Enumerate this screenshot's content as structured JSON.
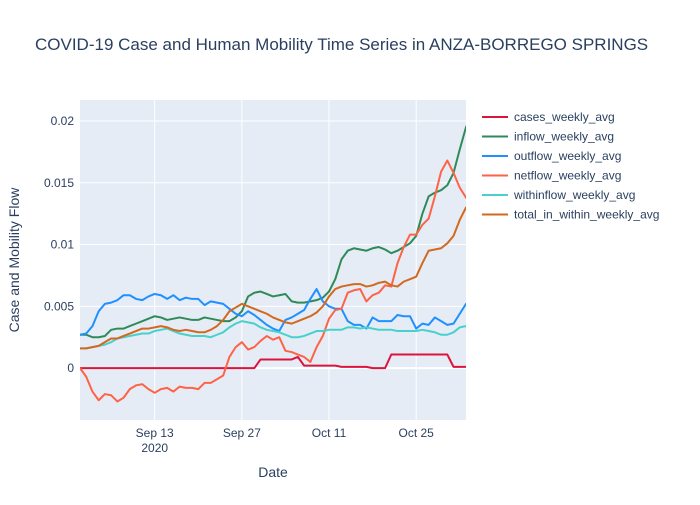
{
  "chart_data": {
    "type": "line",
    "title": "COVID-19 Case and Human Mobility Time Series in ANZA-BORREGO SPRINGS",
    "xlabel": "Date",
    "ylabel": "Case and Mobility Flow",
    "x_start": "2020-09-01",
    "x_range": [
      "2020-09-01",
      "2020-11-02"
    ],
    "ylim": [
      -0.0042,
      0.0217
    ],
    "x_ticks": [
      {
        "date": "2020-09-13",
        "label": "Sep 13",
        "sublabel": "2020"
      },
      {
        "date": "2020-09-27",
        "label": "Sep 27",
        "sublabel": ""
      },
      {
        "date": "2020-10-11",
        "label": "Oct 11",
        "sublabel": ""
      },
      {
        "date": "2020-10-25",
        "label": "Oct 25",
        "sublabel": ""
      }
    ],
    "y_ticks": [
      {
        "value": 0,
        "label": "0"
      },
      {
        "value": 0.005,
        "label": "0.005"
      },
      {
        "value": 0.01,
        "label": "0.01"
      },
      {
        "value": 0.015,
        "label": "0.015"
      },
      {
        "value": 0.02,
        "label": "0.02"
      }
    ],
    "grid": true,
    "legend_position": "right",
    "series": [
      {
        "name": "cases_weekly_avg",
        "color": "#dc143c",
        "values": [
          0,
          0,
          0,
          0,
          0,
          0,
          0,
          0,
          0,
          0,
          0,
          0,
          0,
          0,
          0,
          0,
          0,
          0,
          0,
          0,
          0,
          0,
          0,
          0,
          0,
          0,
          0,
          0,
          0,
          0.0007,
          0.0007,
          0.0007,
          0.0007,
          0.0007,
          0.0007,
          0.0009,
          0.0002,
          0.0002,
          0.0002,
          0.0002,
          0.0002,
          0.0002,
          0.0001,
          0.0001,
          0.0001,
          0.0001,
          0.0001,
          0,
          0,
          0,
          0.0011,
          0.0011,
          0.0011,
          0.0011,
          0.0011,
          0.0011,
          0.0011,
          0.0011,
          0.0011,
          0.0011,
          0.0001,
          0.0001,
          0.0001,
          0.0003,
          0.0003,
          0.0003,
          0.0003,
          0.0003,
          0.0003,
          0.0003,
          0.0003,
          0.0003,
          0.0003
        ]
      },
      {
        "name": "inflow_weekly_avg",
        "color": "#2e8b57",
        "values": [
          0.0027,
          0.0027,
          0.0025,
          0.0025,
          0.0026,
          0.0031,
          0.0032,
          0.0032,
          0.0034,
          0.0036,
          0.0038,
          0.004,
          0.0042,
          0.0041,
          0.0039,
          0.004,
          0.0041,
          0.004,
          0.0039,
          0.0039,
          0.0041,
          0.004,
          0.0039,
          0.0038,
          0.0038,
          0.0041,
          0.0046,
          0.0058,
          0.0061,
          0.0062,
          0.006,
          0.0058,
          0.0059,
          0.006,
          0.0054,
          0.0053,
          0.0053,
          0.0054,
          0.0055,
          0.0057,
          0.0062,
          0.0072,
          0.0088,
          0.0095,
          0.0097,
          0.0096,
          0.0095,
          0.0097,
          0.0098,
          0.0096,
          0.0093,
          0.0095,
          0.0098,
          0.0101,
          0.0107,
          0.0125,
          0.0139,
          0.0142,
          0.0144,
          0.0148,
          0.0158,
          0.0177,
          0.0195,
          0.0204,
          0.0203,
          0.02,
          0.0194,
          0.0185,
          0.0185,
          0.0185,
          0.0185,
          0.0185,
          0.0185
        ]
      },
      {
        "name": "outflow_weekly_avg",
        "color": "#1e90ff",
        "values": [
          0.0027,
          0.0028,
          0.0034,
          0.0046,
          0.0052,
          0.0053,
          0.0055,
          0.0059,
          0.0059,
          0.0056,
          0.0055,
          0.0058,
          0.006,
          0.0059,
          0.0056,
          0.0059,
          0.0055,
          0.0057,
          0.0056,
          0.0056,
          0.0051,
          0.0054,
          0.0053,
          0.0052,
          0.0048,
          0.0044,
          0.0042,
          0.0046,
          0.0043,
          0.0039,
          0.0035,
          0.0032,
          0.003,
          0.0039,
          0.0041,
          0.0044,
          0.0047,
          0.0056,
          0.0064,
          0.0054,
          0.005,
          0.0048,
          0.0048,
          0.0038,
          0.0035,
          0.0035,
          0.0032,
          0.0041,
          0.0038,
          0.0038,
          0.0038,
          0.0043,
          0.0042,
          0.0042,
          0.0032,
          0.0036,
          0.0035,
          0.0041,
          0.0038,
          0.0035,
          0.0036,
          0.0044,
          0.0052,
          0.0055,
          0.0051,
          0.0051,
          0.0051,
          0.0051,
          0.0051,
          0.0051,
          0.0051,
          0.0051,
          0.0051
        ]
      },
      {
        "name": "netflow_weekly_avg",
        "color": "#ff6347",
        "values": [
          0,
          -0.0007,
          -0.0019,
          -0.0026,
          -0.0021,
          -0.0022,
          -0.0027,
          -0.0024,
          -0.0017,
          -0.0014,
          -0.0013,
          -0.0017,
          -0.002,
          -0.0017,
          -0.0016,
          -0.0019,
          -0.0015,
          -0.0016,
          -0.0016,
          -0.0017,
          -0.0012,
          -0.0012,
          -0.0009,
          -0.0006,
          0.0009,
          0.0017,
          0.0021,
          0.0015,
          0.0017,
          0.0022,
          0.0026,
          0.0023,
          0.0025,
          0.0014,
          0.0013,
          0.0011,
          0.0009,
          0.0005,
          0.0017,
          0.0026,
          0.004,
          0.0047,
          0.0048,
          0.0061,
          0.0063,
          0.0064,
          0.0054,
          0.0059,
          0.0061,
          0.0067,
          0.0066,
          0.0085,
          0.0098,
          0.0108,
          0.0108,
          0.0116,
          0.0121,
          0.0139,
          0.0159,
          0.0168,
          0.0158,
          0.0146,
          0.0138,
          0.0133,
          0.0133,
          0.0133,
          0.0133,
          0.0133,
          0.0133,
          0.0133,
          0.0133,
          0.0133,
          0.0133
        ]
      },
      {
        "name": "withinflow_weekly_avg",
        "color": "#48d1cc",
        "values": [
          0.0016,
          0.0016,
          0.0017,
          0.0018,
          0.0019,
          0.0021,
          0.0024,
          0.0025,
          0.0026,
          0.0027,
          0.0028,
          0.0028,
          0.003,
          0.0031,
          0.0032,
          0.003,
          0.0028,
          0.0027,
          0.0026,
          0.0026,
          0.0026,
          0.0025,
          0.0027,
          0.0029,
          0.0033,
          0.0036,
          0.0038,
          0.0037,
          0.0036,
          0.0033,
          0.0031,
          0.003,
          0.0029,
          0.0027,
          0.0025,
          0.0025,
          0.0026,
          0.0028,
          0.003,
          0.003,
          0.0031,
          0.0031,
          0.0031,
          0.0033,
          0.0033,
          0.0032,
          0.0033,
          0.0032,
          0.0031,
          0.0031,
          0.0031,
          0.003,
          0.003,
          0.003,
          0.003,
          0.0031,
          0.003,
          0.0029,
          0.0027,
          0.0027,
          0.0029,
          0.0033,
          0.0034,
          0.0031,
          0.0031,
          0.0031,
          0.0031,
          0.0031,
          0.0031,
          0.0031,
          0.0031,
          0.0031,
          0.0031
        ]
      },
      {
        "name": "total_in_within_weekly_avg",
        "color": "#d2691e",
        "values": [
          0.0016,
          0.0016,
          0.0017,
          0.0018,
          0.0021,
          0.0024,
          0.0024,
          0.0026,
          0.0028,
          0.003,
          0.0032,
          0.0032,
          0.0033,
          0.0034,
          0.0033,
          0.0031,
          0.003,
          0.0031,
          0.003,
          0.0029,
          0.0029,
          0.0031,
          0.0034,
          0.0039,
          0.0046,
          0.0049,
          0.0052,
          0.005,
          0.0048,
          0.0046,
          0.0044,
          0.0041,
          0.0039,
          0.0037,
          0.0036,
          0.0038,
          0.004,
          0.0042,
          0.0045,
          0.005,
          0.0058,
          0.0064,
          0.0066,
          0.0067,
          0.0068,
          0.0068,
          0.0066,
          0.0067,
          0.0069,
          0.007,
          0.0067,
          0.0066,
          0.007,
          0.0072,
          0.0074,
          0.0085,
          0.0095,
          0.0096,
          0.0097,
          0.0101,
          0.0107,
          0.012,
          0.013,
          0.0131,
          0.0131,
          0.0127,
          0.012,
          0.012,
          0.012,
          0.012,
          0.012,
          0.012,
          0.012
        ]
      }
    ]
  }
}
